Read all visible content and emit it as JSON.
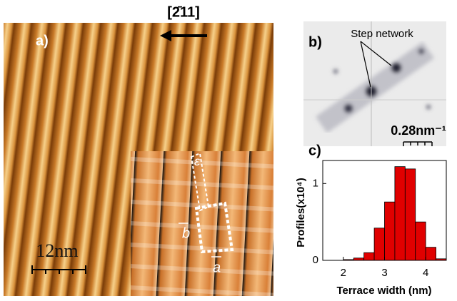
{
  "panel_a": {
    "label": "a)",
    "direction": "[2̄11]",
    "scale_bar": "12nm",
    "inset_labels": [
      "ε",
      "b",
      "a"
    ]
  },
  "panel_b": {
    "label": "b)",
    "annotation": "Step network",
    "scale_bar": "0.28nm⁻¹"
  },
  "chart_data": {
    "type": "histogram",
    "label": "c)",
    "x_label": "Terrace width (nm)",
    "y_label": "Profiles(x10⁴)",
    "bins": [
      2.0,
      2.25,
      2.5,
      2.75,
      3.0,
      3.25,
      3.5,
      3.75,
      4.0,
      4.25,
      4.5
    ],
    "values": [
      0.01,
      0.03,
      0.1,
      0.42,
      0.76,
      1.22,
      1.19,
      0.5,
      0.17,
      0.02
    ],
    "color": "#e00000",
    "xlim": [
      1.5,
      4.5
    ],
    "ylim": [
      0,
      1.3
    ],
    "xticks": [
      2,
      3,
      4
    ],
    "yticks": [
      0,
      1
    ]
  }
}
